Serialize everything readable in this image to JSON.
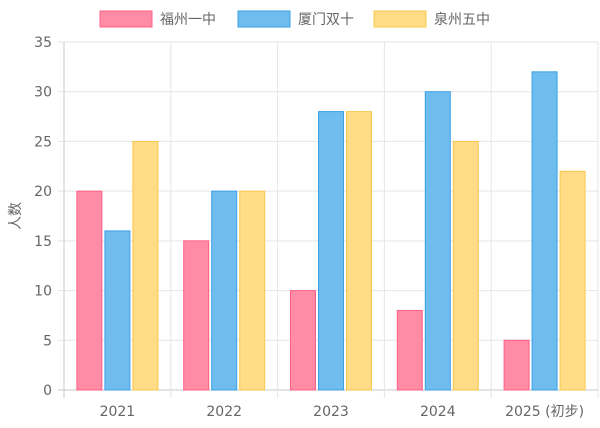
{
  "chart_data": {
    "type": "bar",
    "categories": [
      "2021",
      "2022",
      "2023",
      "2024",
      "2025 (初步)"
    ],
    "series": [
      {
        "name": "福州一中",
        "values": [
          20,
          15,
          10,
          8,
          5
        ],
        "fill": "#ff8ba4",
        "stroke": "#ff5f86"
      },
      {
        "name": "厦门双十",
        "values": [
          16,
          20,
          28,
          30,
          32
        ],
        "fill": "#6fbcef",
        "stroke": "#3ba0e6"
      },
      {
        "name": "泉州五中",
        "values": [
          25,
          20,
          28,
          25,
          22
        ],
        "fill": "#ffdc85",
        "stroke": "#f5c84c"
      }
    ],
    "ylabel": "人数",
    "xlabel": "",
    "ylim": [
      0,
      35
    ],
    "yticks": [
      "0",
      "5",
      "10",
      "15",
      "20",
      "25",
      "30",
      "35"
    ],
    "grid": true,
    "legend_position": "top"
  }
}
